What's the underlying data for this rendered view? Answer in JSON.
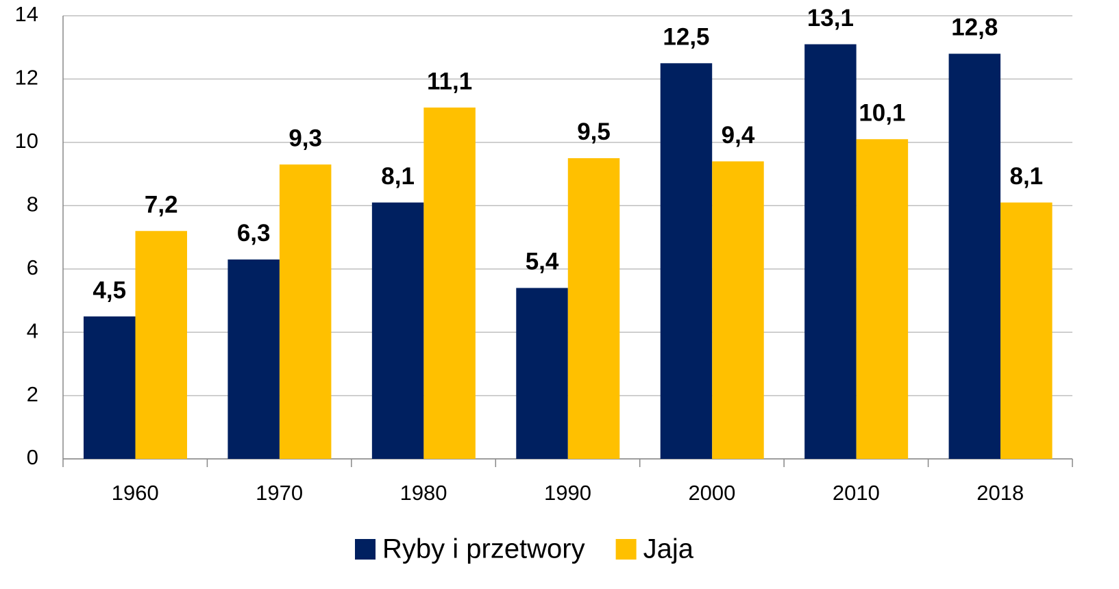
{
  "chart_data": {
    "type": "bar",
    "categories": [
      "1960",
      "1970",
      "1980",
      "1990",
      "2000",
      "2010",
      "2018"
    ],
    "series": [
      {
        "name": "Ryby i przetwory",
        "color": "#002060",
        "values": [
          4.5,
          6.3,
          8.1,
          5.4,
          12.5,
          13.1,
          12.8
        ],
        "value_labels": [
          "4,5",
          "6,3",
          "8,1",
          "5,4",
          "12,5",
          "13,1",
          "12,8"
        ]
      },
      {
        "name": "Jaja",
        "color": "#ffc000",
        "values": [
          7.2,
          9.3,
          11.1,
          9.5,
          9.4,
          10.1,
          8.1
        ],
        "value_labels": [
          "7,2",
          "9,3",
          "11,1",
          "9,5",
          "9,4",
          "10,1",
          "8,1"
        ]
      }
    ],
    "ylim": [
      0,
      14
    ],
    "yticks": [
      0,
      2,
      4,
      6,
      8,
      10,
      12,
      14
    ],
    "grid": true,
    "legend": "bottom"
  }
}
